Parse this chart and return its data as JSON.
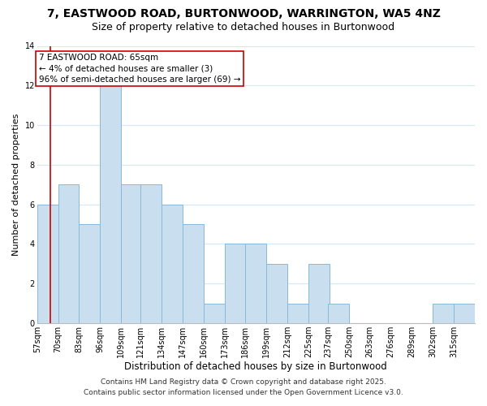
{
  "title1": "7, EASTWOOD ROAD, BURTONWOOD, WARRINGTON, WA5 4NZ",
  "title2": "Size of property relative to detached houses in Burtonwood",
  "xlabel": "Distribution of detached houses by size in Burtonwood",
  "ylabel": "Number of detached properties",
  "bin_edges": [
    57,
    70,
    83,
    96,
    109,
    121,
    134,
    147,
    160,
    173,
    186,
    199,
    212,
    225,
    237,
    250,
    263,
    276,
    289,
    302,
    315,
    328
  ],
  "bar_heights": [
    6,
    7,
    5,
    12,
    7,
    7,
    6,
    5,
    1,
    4,
    4,
    3,
    1,
    3,
    1,
    0,
    0,
    0,
    0,
    1,
    1
  ],
  "bin_labels": [
    "57sqm",
    "70sqm",
    "83sqm",
    "96sqm",
    "109sqm",
    "121sqm",
    "134sqm",
    "147sqm",
    "160sqm",
    "173sqm",
    "186sqm",
    "199sqm",
    "212sqm",
    "225sqm",
    "237sqm",
    "250sqm",
    "263sqm",
    "276sqm",
    "289sqm",
    "302sqm",
    "315sqm"
  ],
  "bar_color": "#c9dff0",
  "bar_edge_color": "#8ab8d8",
  "grid_color": "#d5e8f5",
  "property_line_x": 65,
  "property_line_color": "#cc0000",
  "annotation_title": "7 EASTWOOD ROAD: 65sqm",
  "annotation_line1": "← 4% of detached houses are smaller (3)",
  "annotation_line2": "96% of semi-detached houses are larger (69) →",
  "annotation_box_color": "white",
  "annotation_box_edge": "#cc0000",
  "ylim": [
    0,
    14
  ],
  "yticks": [
    0,
    2,
    4,
    6,
    8,
    10,
    12,
    14
  ],
  "footer1": "Contains HM Land Registry data © Crown copyright and database right 2025.",
  "footer2": "Contains public sector information licensed under the Open Government Licence v3.0.",
  "title1_fontsize": 10,
  "title2_fontsize": 9,
  "xlabel_fontsize": 8.5,
  "ylabel_fontsize": 8,
  "tick_fontsize": 7,
  "annotation_fontsize": 7.5,
  "footer_fontsize": 6.5
}
